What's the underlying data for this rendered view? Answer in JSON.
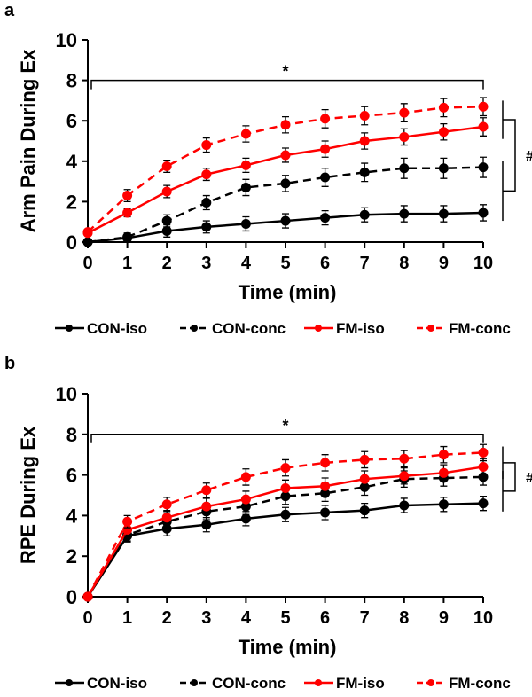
{
  "chart_data": [
    {
      "type": "line",
      "panel_label": "a",
      "ylabel": "Arm Pain During Ex",
      "xlabel": "Time (min)",
      "ylim": [
        0,
        10
      ],
      "yticks": [
        "0",
        "2",
        "4",
        "6",
        "8",
        "10"
      ],
      "xticks": [
        "0",
        "1",
        "2",
        "3",
        "4",
        "5",
        "6",
        "7",
        "8",
        "9",
        "10"
      ],
      "x": [
        0,
        1,
        2,
        3,
        4,
        5,
        6,
        7,
        8,
        9,
        10
      ],
      "annotations": {
        "star": "*",
        "hash": "#"
      },
      "series": [
        {
          "name": "CON-iso",
          "color": "#000000",
          "dash": false,
          "values": [
            0,
            0.2,
            0.55,
            0.75,
            0.9,
            1.05,
            1.2,
            1.35,
            1.4,
            1.4,
            1.45
          ],
          "err": [
            0.05,
            0.2,
            0.3,
            0.3,
            0.35,
            0.35,
            0.35,
            0.35,
            0.4,
            0.4,
            0.4
          ]
        },
        {
          "name": "CON-conc",
          "color": "#000000",
          "dash": true,
          "values": [
            0,
            0.25,
            1.05,
            1.95,
            2.7,
            2.9,
            3.2,
            3.45,
            3.65,
            3.65,
            3.7
          ],
          "err": [
            0.05,
            0.2,
            0.3,
            0.35,
            0.4,
            0.4,
            0.45,
            0.45,
            0.5,
            0.5,
            0.5
          ]
        },
        {
          "name": "FM-iso",
          "color": "#ff0000",
          "dash": false,
          "values": [
            0.45,
            1.45,
            2.5,
            3.35,
            3.8,
            4.3,
            4.6,
            5.0,
            5.2,
            5.45,
            5.7
          ],
          "err": [
            0.1,
            0.2,
            0.3,
            0.3,
            0.35,
            0.35,
            0.4,
            0.4,
            0.4,
            0.4,
            0.45
          ]
        },
        {
          "name": "FM-conc",
          "color": "#ff0000",
          "dash": true,
          "values": [
            0.5,
            2.3,
            3.75,
            4.8,
            5.35,
            5.8,
            6.1,
            6.25,
            6.4,
            6.65,
            6.7
          ],
          "err": [
            0.1,
            0.3,
            0.3,
            0.35,
            0.4,
            0.4,
            0.45,
            0.45,
            0.45,
            0.45,
            0.45
          ]
        }
      ]
    },
    {
      "type": "line",
      "panel_label": "b",
      "ylabel": "RPE During Ex",
      "xlabel": "Time (min)",
      "ylim": [
        0,
        10
      ],
      "yticks": [
        "0",
        "2",
        "4",
        "6",
        "8",
        "10"
      ],
      "xticks": [
        "0",
        "1",
        "2",
        "3",
        "4",
        "5",
        "6",
        "7",
        "8",
        "9",
        "10"
      ],
      "x": [
        0,
        1,
        2,
        3,
        4,
        5,
        6,
        7,
        8,
        9,
        10
      ],
      "annotations": {
        "star": "*",
        "hash": "#"
      },
      "series": [
        {
          "name": "CON-iso",
          "color": "#000000",
          "dash": false,
          "values": [
            0,
            3.0,
            3.35,
            3.55,
            3.85,
            4.05,
            4.15,
            4.25,
            4.5,
            4.55,
            4.6
          ],
          "err": [
            0.05,
            0.3,
            0.35,
            0.35,
            0.35,
            0.35,
            0.35,
            0.35,
            0.35,
            0.35,
            0.35
          ]
        },
        {
          "name": "CON-conc",
          "color": "#000000",
          "dash": true,
          "values": [
            0,
            3.05,
            3.7,
            4.2,
            4.45,
            4.95,
            5.1,
            5.4,
            5.8,
            5.85,
            5.9
          ],
          "err": [
            0.05,
            0.3,
            0.35,
            0.4,
            0.4,
            0.4,
            0.4,
            0.4,
            0.4,
            0.4,
            0.4
          ]
        },
        {
          "name": "FM-iso",
          "color": "#ff0000",
          "dash": false,
          "values": [
            0,
            3.3,
            3.9,
            4.45,
            4.8,
            5.35,
            5.45,
            5.8,
            5.95,
            6.1,
            6.4
          ],
          "err": [
            0.05,
            0.3,
            0.35,
            0.4,
            0.4,
            0.4,
            0.4,
            0.4,
            0.4,
            0.4,
            0.4
          ]
        },
        {
          "name": "FM-conc",
          "color": "#ff0000",
          "dash": true,
          "values": [
            0,
            3.7,
            4.55,
            5.25,
            5.9,
            6.35,
            6.6,
            6.75,
            6.8,
            7.0,
            7.1
          ],
          "err": [
            0.05,
            0.3,
            0.35,
            0.35,
            0.4,
            0.4,
            0.4,
            0.4,
            0.4,
            0.4,
            0.4
          ]
        }
      ]
    }
  ]
}
